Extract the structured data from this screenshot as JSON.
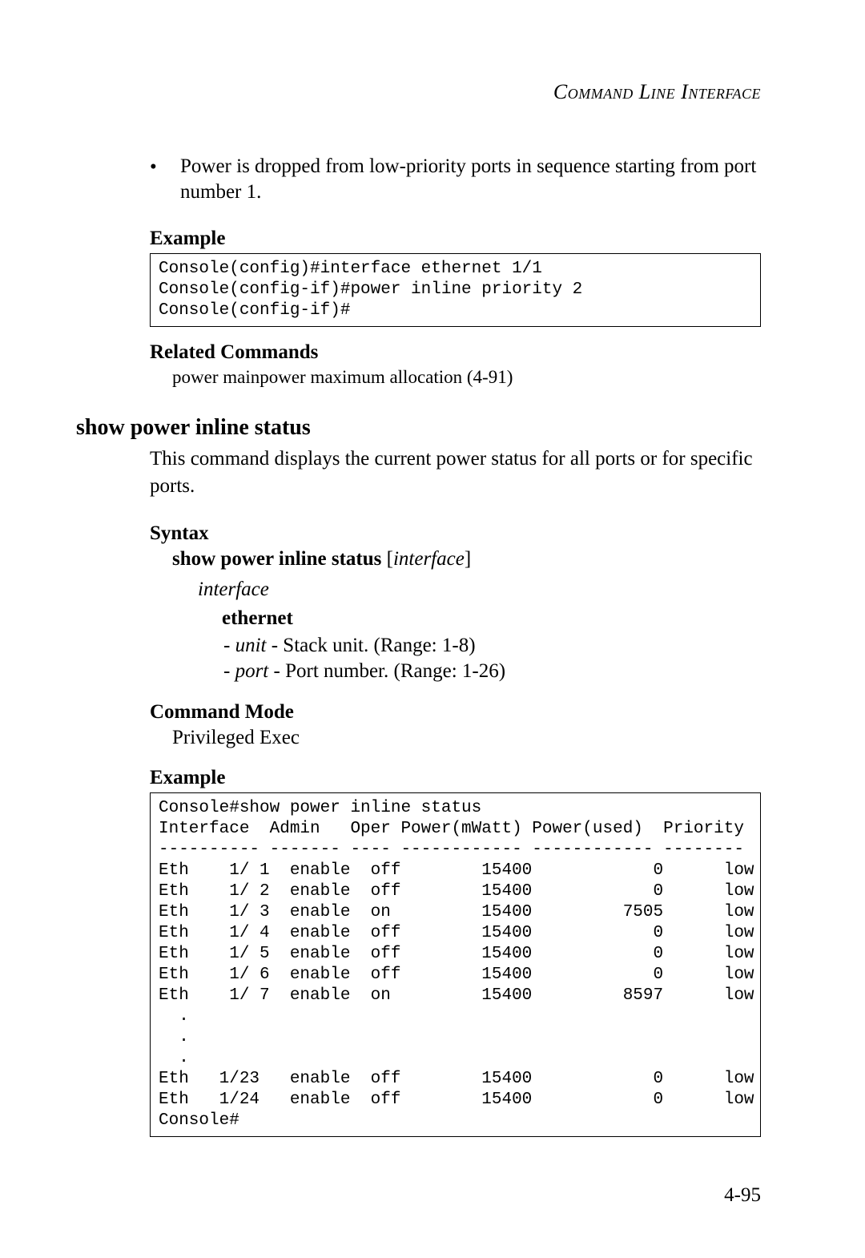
{
  "running_head": "Command Line Interface",
  "bullet": "Power is dropped from low-priority ports in sequence starting from port number 1.",
  "labels": {
    "example": "Example",
    "related": "Related Commands",
    "syntax": "Syntax",
    "cmd_mode": "Command Mode"
  },
  "code1": "Console(config)#interface ethernet 1/1\nConsole(config-if)#power inline priority 2\nConsole(config-if)#",
  "related_cmd": "power mainpower maximum allocation (4-91)",
  "cmd_heading": "show power inline status",
  "cmd_desc": "This command displays the current power status for all ports or for specific ports.",
  "syntax": {
    "kw": "show power inline status",
    "arg": "interface",
    "sub_arg": "interface",
    "sub_kw": "ethernet",
    "unit_it": "unit",
    "unit_rest": " - Stack unit. (Range: 1-8)",
    "port_it": "port",
    "port_rest": " - Port number. (Range: 1-26)"
  },
  "mode_text": "Privileged Exec",
  "code2": "Console#show power inline status\nInterface  Admin   Oper Power(mWatt) Power(used)  Priority\n---------- ------- ---- ------------ ------------ --------\nEth    1/ 1  enable  off        15400            0      low\nEth    1/ 2  enable  off        15400            0      low\nEth    1/ 3  enable  on         15400         7505      low\nEth    1/ 4  enable  off        15400            0      low\nEth    1/ 5  enable  off        15400            0      low\nEth    1/ 6  enable  off        15400            0      low\nEth    1/ 7  enable  on         15400         8597      low\n  .\n  .\n  .\nEth   1/23   enable  off        15400            0      low\nEth   1/24   enable  off        15400            0      low\nConsole#",
  "page_num": "4-95",
  "colors": {
    "text": "#000000",
    "bg": "#ffffff",
    "border": "#000000"
  },
  "fonts": {
    "body_family": "Garamond/Times",
    "mono_family": "Courier",
    "body_size_pt": 12,
    "mono_size_pt": 10,
    "heading_size_pt": 13
  }
}
